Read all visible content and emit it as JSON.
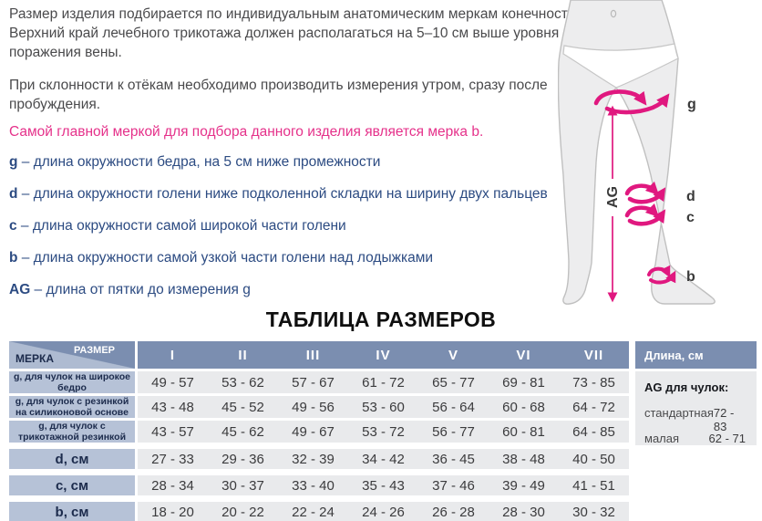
{
  "colors": {
    "header_blue": "#7b8eb0",
    "label_blue": "#b6c2d7",
    "cell_gray": "#e9eaec",
    "accent_pink": "#e0187f",
    "pink_text": "#e5318a",
    "list_blue": "#2c4b82"
  },
  "intro": {
    "paragraph1": "Размер изделия подбирается по индивидуальным анатомическим меркам конечности. Верхний край лечебного трикотажа должен располагаться на 5–10 см выше уровня поражения вены.",
    "paragraph2": "При склонности к отёкам необходимо производить измерения утром, сразу после пробуждения.",
    "highlight": "Самой главной меркой для подбора данного изделия является мерка b."
  },
  "measurements": [
    {
      "key": "g",
      "desc": "– длина окружности бедра, на 5 см ниже промежности"
    },
    {
      "key": "d",
      "desc": "– длина окружности голени ниже подколенной складки на ширину двух пальцев"
    },
    {
      "key": "c",
      "desc": "– длина окружности самой широкой части голени"
    },
    {
      "key": "b",
      "desc": "– длина окружности самой узкой части голени над лодыжками"
    },
    {
      "key": "AG",
      "desc": "– длина от пятки до измерения g"
    }
  ],
  "diagram": {
    "g": "g",
    "d": "d",
    "c": "c",
    "b": "b",
    "ag": "AG"
  },
  "size_table": {
    "title": "ТАБЛИЦА РАЗМЕРОВ",
    "corner": {
      "top": "РАЗМЕР",
      "bottom": "МЕРКА"
    },
    "columns": [
      "I",
      "II",
      "III",
      "IV",
      "V",
      "VI",
      "VII"
    ],
    "rows": [
      {
        "label": "g, для чулок на широкое бедро",
        "values": [
          "49 - 57",
          "53 - 62",
          "57 - 67",
          "61 - 72",
          "65 - 77",
          "69 - 81",
          "73 - 85"
        ]
      },
      {
        "label": "g, для чулок с резинкой на силиконовой основе",
        "values": [
          "43 - 48",
          "45 - 52",
          "49 - 56",
          "53 - 60",
          "56 - 64",
          "60 - 68",
          "64 - 72"
        ]
      },
      {
        "label": "g, для чулок с трикотажной резинкой",
        "values": [
          "43 - 57",
          "45 - 62",
          "49 - 67",
          "53 - 72",
          "56 - 77",
          "60 - 81",
          "64 - 85"
        ]
      },
      {
        "label": "d, см",
        "values": [
          "27 - 33",
          "29 - 36",
          "32 - 39",
          "34 - 42",
          "36 - 45",
          "38 - 48",
          "40 - 50"
        ]
      },
      {
        "label": "c, см",
        "values": [
          "28 - 34",
          "30 - 37",
          "33 - 40",
          "35 - 43",
          "37 - 46",
          "39 - 49",
          "41 - 51"
        ]
      },
      {
        "label": "b, см",
        "values": [
          "18 - 20",
          "20 - 22",
          "22 - 24",
          "24 - 26",
          "26 - 28",
          "28 - 30",
          "30 - 32"
        ]
      }
    ]
  },
  "length_panel": {
    "header": "Длина, см",
    "subheader": "AG для чулок:",
    "rows": [
      {
        "label": "стандартная",
        "value": "72 - 83"
      },
      {
        "label": "малая",
        "value": "62 - 71"
      }
    ]
  }
}
